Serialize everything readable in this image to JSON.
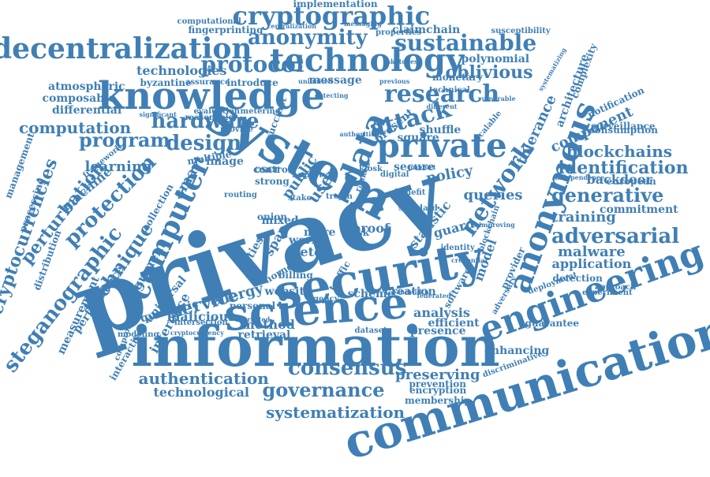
{
  "colors": {
    "text": "#3f7fb5",
    "background": "#ffffff"
  },
  "words": [
    "privacy",
    "communication",
    "information",
    "security",
    "system",
    "science",
    "engineering",
    "knowledge",
    "technology",
    "decentralization",
    "cryptographic",
    "anonymous",
    "private",
    "network",
    "data",
    "computer",
    "anonymity",
    "sustainable",
    "research",
    "attack",
    "hardware",
    "protocol",
    "protection",
    "design",
    "identification",
    "governance",
    "consensus",
    "authentication",
    "blockchains",
    "adversarial",
    "generative",
    "steganographic",
    "cryptocurrencies",
    "perturbation",
    "technique",
    "program",
    "computation",
    "learning",
    "machine",
    "service",
    "oblivious",
    "systematization",
    "technological",
    "preserving",
    "malicious",
    "retrieval",
    "method",
    "presence",
    "analysis",
    "training",
    "component",
    "architecture",
    "tolerance",
    "policy",
    "proof",
    "queries",
    "guard",
    "model",
    "statistic",
    "malware",
    "application",
    "energy",
    "inference",
    "argument",
    "performance",
    "measurement",
    "management",
    "processing",
    "distribution",
    "composable",
    "differential",
    "atmospheric",
    "technologies",
    "byzantine",
    "assurance",
    "introduce",
    "message",
    "polynomial",
    "monetary",
    "implementation",
    "computational",
    "fingerprinting",
    "claimchain",
    "properties",
    "susceptibility",
    "backdoor",
    "commitment",
    "european",
    "surveillance",
    "consumption",
    "notification",
    "complexity",
    "enhancing",
    "guarantee",
    "prevention",
    "encryption",
    "membership",
    "creation",
    "software",
    "scheme",
    "website",
    "dataset",
    "cities",
    "meter",
    "work",
    "more",
    "public",
    "cscr",
    "secure",
    "shuffle",
    "square",
    "present",
    "smart",
    "image",
    "multiple",
    "routing",
    "control",
    "strong",
    "user",
    "mixed",
    "onion",
    "span",
    "billing",
    "hornet",
    "personal",
    "quadratic",
    "universal",
    "intersection",
    "cryptocurrency",
    "interactive",
    "compromise",
    "modeling",
    "collection",
    "framework",
    "detection",
    "experiment",
    "approach",
    "provider",
    "adversary",
    "deployment",
    "identity",
    "blockchain",
    "efficient",
    "discriminative",
    "evaluation",
    "metering",
    "reasonable",
    "provide",
    "succinct",
    "trojan",
    "scalable",
    "sketches",
    "technical",
    "unlimited",
    "previous",
    "messaging",
    "centralization",
    "different",
    "systematizing",
    "independence",
    "improving",
    "credential",
    "federated",
    "bandwidth",
    "untrusted",
    "authorities",
    "significant",
    "detecting",
    "vulnerable",
    "product",
    "party",
    "agency",
    "traffic",
    "risk",
    "stake",
    "digital",
    "ranked",
    "kiosk",
    "benefit",
    "standard"
  ]
}
